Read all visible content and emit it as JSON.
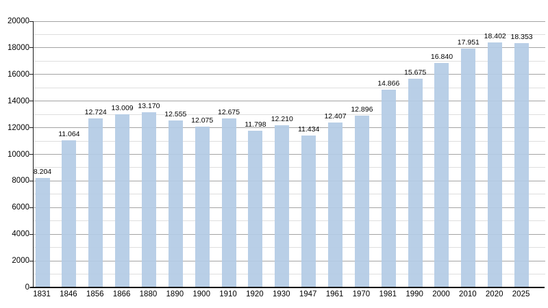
{
  "chart_data": {
    "type": "bar",
    "title": "",
    "xlabel": "",
    "ylabel": "",
    "categories": [
      "1831",
      "1846",
      "1856",
      "1866",
      "1880",
      "1890",
      "1900",
      "1910",
      "1920",
      "1930",
      "1947",
      "1961",
      "1970",
      "1981",
      "1990",
      "2000",
      "2010",
      "2020",
      "2025"
    ],
    "values": [
      8204,
      11064,
      12724,
      13009,
      13170,
      12555,
      12075,
      12675,
      11798,
      12210,
      11434,
      12407,
      12896,
      14866,
      15675,
      16840,
      17951,
      18402,
      18353
    ],
    "value_labels": [
      "8.204",
      "11.064",
      "12.724",
      "13.009",
      "13.170",
      "12.555",
      "12.075",
      "12.675",
      "11.798",
      "12.210",
      "11.434",
      "12.407",
      "12.896",
      "14.866",
      "15.675",
      "16.840",
      "17.951",
      "18.402",
      "18.353"
    ],
    "ylim": [
      0,
      20000
    ],
    "y_ticks": [
      0,
      2000,
      4000,
      6000,
      8000,
      10000,
      12000,
      14000,
      16000,
      18000,
      20000
    ],
    "ytick_major": 2000,
    "ytick_minor": 1000,
    "grid": true,
    "legend": "none",
    "bar_color": "#b3cbe5",
    "bar_opacity": 0.92,
    "major_grid_color": "#a3a3a3",
    "minor_grid_color": "#dedede",
    "axis_color": "#000000",
    "text_color": "#000000",
    "background_color": "#ffffff"
  }
}
